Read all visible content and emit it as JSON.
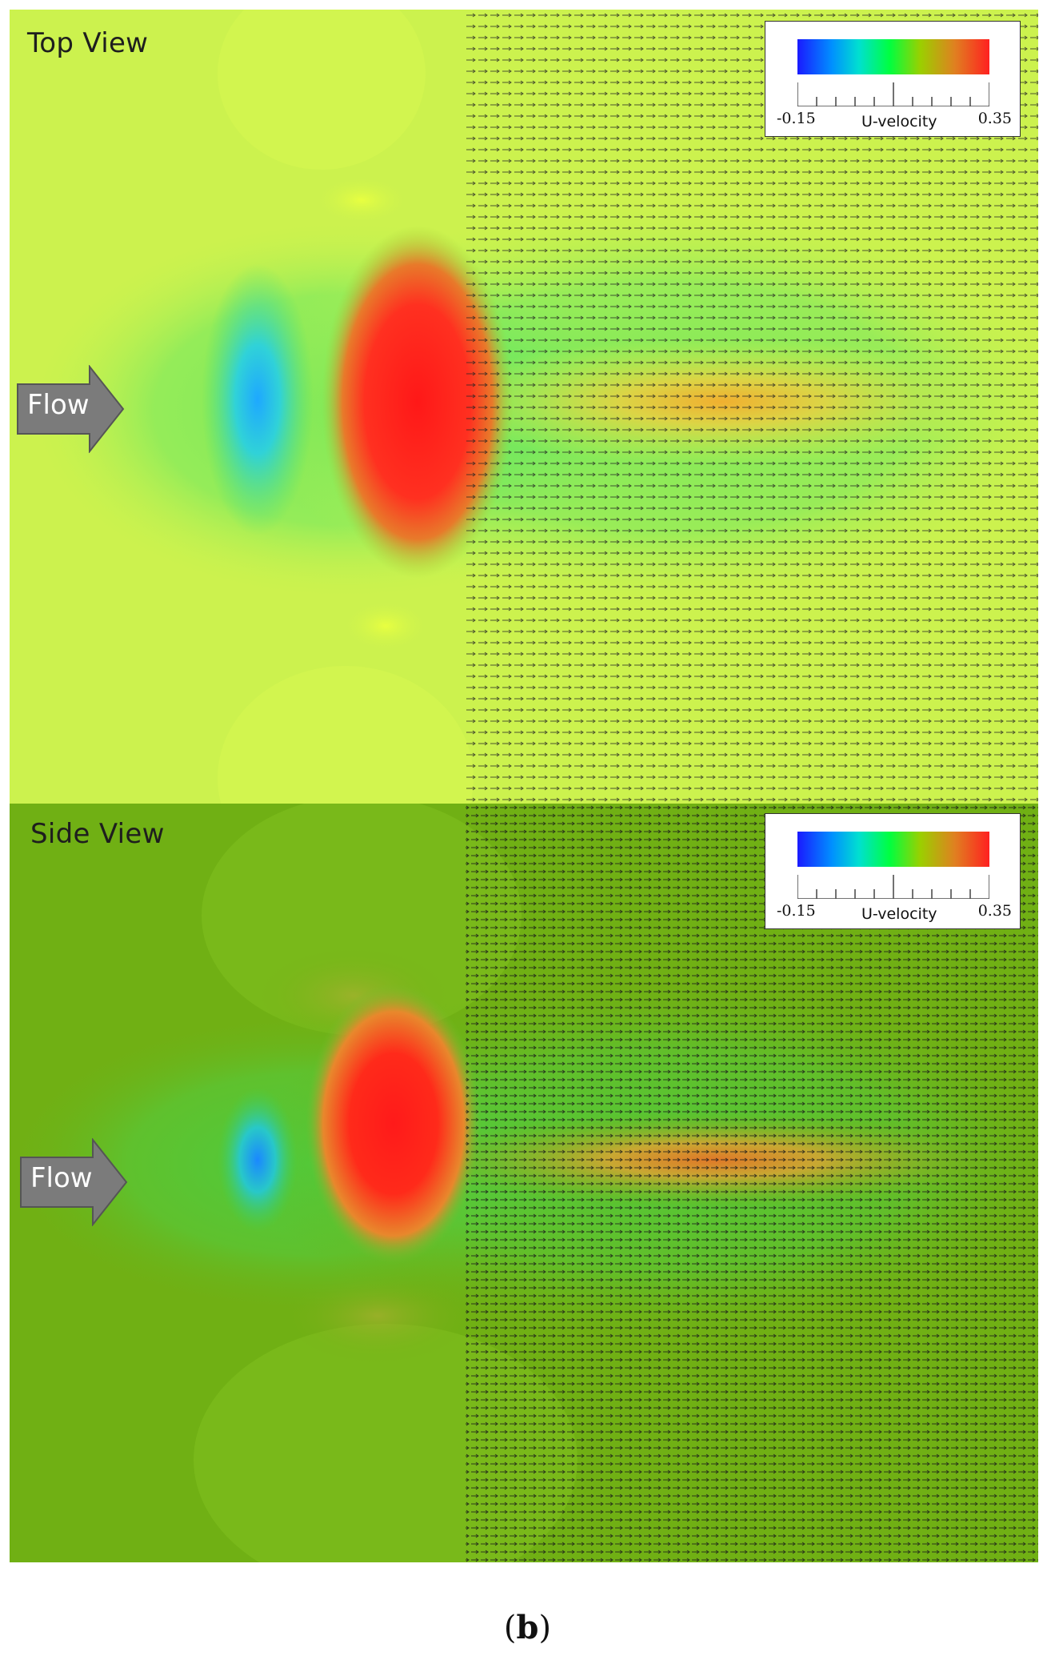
{
  "panels": [
    {
      "title": "Top View",
      "flow_label": "Flow",
      "legend": {
        "min_label": "-0.15",
        "max_label": "0.35",
        "title": "U-velocity"
      },
      "colors": {
        "background": "#ccf24e",
        "low": "#2bb8ff",
        "high": "#ff2020",
        "mid": "#4ee85a"
      }
    },
    {
      "title": "Side View",
      "flow_label": "Flow",
      "legend": {
        "min_label": "-0.15",
        "max_label": "0.35",
        "title": "U-velocity"
      },
      "colors": {
        "background": "#70b014",
        "low": "#1a8cff",
        "high": "#ff2020",
        "mid": "#45d645"
      }
    }
  ],
  "caption": {
    "open": "(",
    "letter": "b",
    "close": ")"
  }
}
